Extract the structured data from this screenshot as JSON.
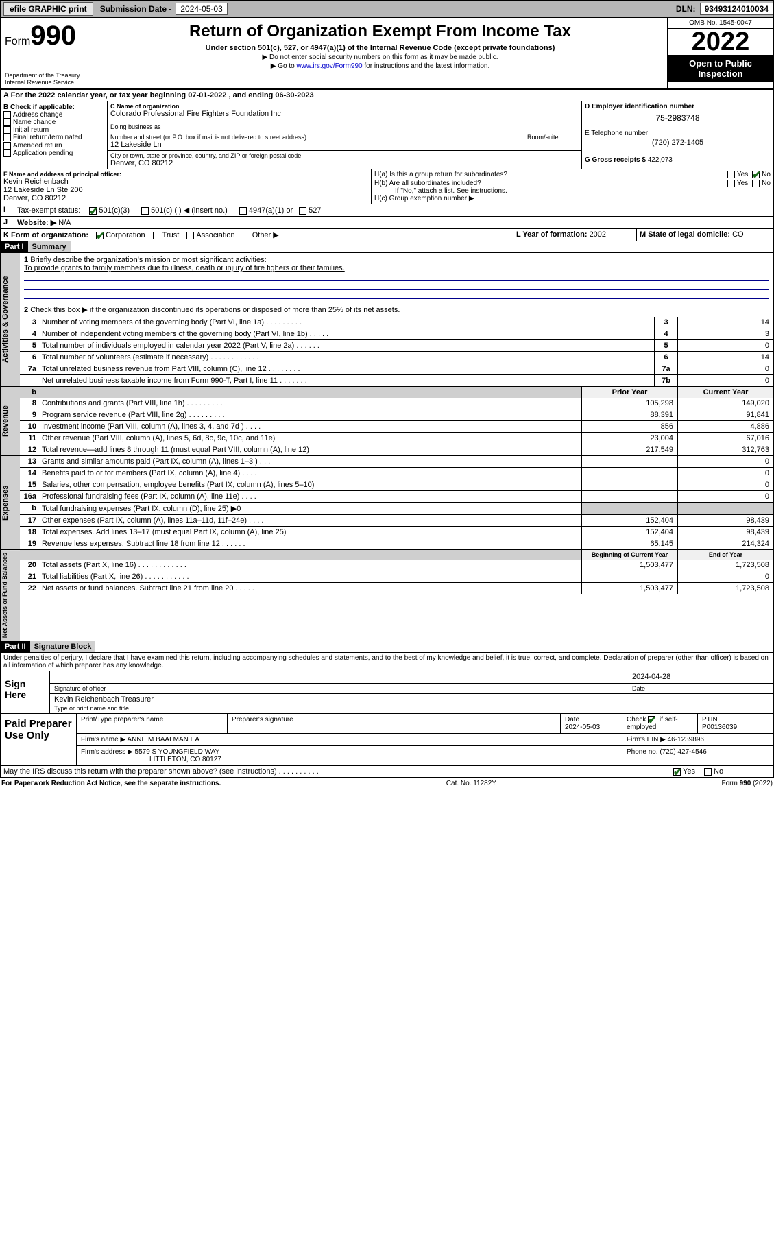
{
  "top": {
    "efile": "efile GRAPHIC print",
    "subdate_label": "Submission Date - ",
    "subdate": "2024-05-03",
    "dln_label": "DLN: ",
    "dln": "93493124010034"
  },
  "hdr": {
    "form_word": "Form",
    "form_num": "990",
    "dept": "Department of the Treasury",
    "irs": "Internal Revenue Service",
    "title": "Return of Organization Exempt From Income Tax",
    "sub": "Under section 501(c), 527, or 4947(a)(1) of the Internal Revenue Code (except private foundations)",
    "note1": "▶ Do not enter social security numbers on this form as it may be made public.",
    "note2_pre": "▶ Go to ",
    "note2_link": "www.irs.gov/Form990",
    "note2_post": " for instructions and the latest information.",
    "omb": "OMB No. 1545-0047",
    "year": "2022",
    "o2p": "Open to Public Inspection"
  },
  "A": {
    "line": "For the 2022 calendar year, or tax year beginning ",
    "begin": "07-01-2022",
    "mid": " , and ending ",
    "end": "06-30-2023"
  },
  "B": {
    "label": "B Check if applicable:",
    "items": [
      "Address change",
      "Name change",
      "Initial return",
      "Final return/terminated",
      "Amended return",
      "Application pending"
    ]
  },
  "C": {
    "name_label": "C Name of organization",
    "name": "Colorado Professional Fire Fighters Foundation Inc",
    "dba_label": "Doing business as",
    "dba": "",
    "street_label": "Number and street (or P.O. box if mail is not delivered to street address)",
    "room_label": "Room/suite",
    "street": "12 Lakeside Ln",
    "city_label": "City or town, state or province, country, and ZIP or foreign postal code",
    "city": "Denver, CO  80212"
  },
  "D": {
    "label": "D Employer identification number",
    "val": "75-2983748"
  },
  "E": {
    "label": "E Telephone number",
    "val": "(720) 272-1405"
  },
  "G": {
    "label": "G Gross receipts $ ",
    "val": "422,073"
  },
  "F": {
    "label": "F Name and address of principal officer:",
    "name": "Kevin Reichenbach",
    "street": "12 Lakeside Ln Ste 200",
    "city": "Denver, CO  80212"
  },
  "H": {
    "a": "H(a)  Is this a group return for subordinates?",
    "b": "H(b)  Are all subordinates included?",
    "bnote": "If \"No,\" attach a list. See instructions.",
    "c": "H(c)  Group exemption number ▶",
    "yes": "Yes",
    "no": "No"
  },
  "I": {
    "label": "Tax-exempt status:",
    "o1": "501(c)(3)",
    "o2": "501(c) (  ) ◀ (insert no.)",
    "o3": "4947(a)(1) or",
    "o4": "527"
  },
  "J": {
    "label": "Website: ▶",
    "val": "N/A"
  },
  "K": {
    "label": "K Form of organization:",
    "opts": [
      "Corporation",
      "Trust",
      "Association",
      "Other ▶"
    ]
  },
  "L": {
    "label": "L Year of formation: ",
    "val": "2002"
  },
  "M": {
    "label": "M State of legal domicile: ",
    "val": "CO"
  },
  "part1": {
    "bar": "Part I",
    "title": "Summary"
  },
  "p1": {
    "q1": "Briefly describe the organization's mission or most significant activities:",
    "a1": "To provide grants to family members due to illness, death or injury of fire fighers or their families.",
    "q2": "Check this box ▶      if the organization discontinued its operations or disposed of more than 25% of its net assets.",
    "lines": [
      {
        "n": "3",
        "d": "Number of voting members of the governing body (Part VI, line 1a)   .   .   .   .   .   .   .   .   .",
        "sn": "3",
        "v": "14"
      },
      {
        "n": "4",
        "d": "Number of independent voting members of the governing body (Part VI, line 1b)   .   .   .   .   .",
        "sn": "4",
        "v": "3"
      },
      {
        "n": "5",
        "d": "Total number of individuals employed in calendar year 2022 (Part V, line 2a)   .   .   .   .   .   .",
        "sn": "5",
        "v": "0"
      },
      {
        "n": "6",
        "d": "Total number of volunteers (estimate if necessary)   .   .   .   .   .   .   .   .   .   .   .   .",
        "sn": "6",
        "v": "14"
      },
      {
        "n": "7a",
        "d": "Total unrelated business revenue from Part VIII, column (C), line 12   .   .   .   .   .   .   .   .",
        "sn": "7a",
        "v": "0"
      },
      {
        "n": "",
        "d": "Net unrelated business taxable income from Form 990-T, Part I, line 11   .   .   .   .   .   .   .",
        "sn": "7b",
        "v": "0"
      }
    ]
  },
  "rev": {
    "h1": "Prior Year",
    "h2": "Current Year",
    "rows": [
      {
        "n": "8",
        "d": "Contributions and grants (Part VIII, line 1h)   .   .   .   .   .   .   .   .   .",
        "p": "105,298",
        "c": "149,020"
      },
      {
        "n": "9",
        "d": "Program service revenue (Part VIII, line 2g)   .   .   .   .   .   .   .   .   .",
        "p": "88,391",
        "c": "91,841"
      },
      {
        "n": "10",
        "d": "Investment income (Part VIII, column (A), lines 3, 4, and 7d )   .   .   .   .",
        "p": "856",
        "c": "4,886"
      },
      {
        "n": "11",
        "d": "Other revenue (Part VIII, column (A), lines 5, 6d, 8c, 9c, 10c, and 11e)",
        "p": "23,004",
        "c": "67,016"
      },
      {
        "n": "12",
        "d": "Total revenue—add lines 8 through 11 (must equal Part VIII, column (A), line 12)",
        "p": "217,549",
        "c": "312,763"
      }
    ]
  },
  "exp": {
    "rows": [
      {
        "n": "13",
        "d": "Grants and similar amounts paid (Part IX, column (A), lines 1–3 )   .   .   .",
        "p": "",
        "c": "0"
      },
      {
        "n": "14",
        "d": "Benefits paid to or for members (Part IX, column (A), line 4)   .   .   .   .",
        "p": "",
        "c": "0"
      },
      {
        "n": "15",
        "d": "Salaries, other compensation, employee benefits (Part IX, column (A), lines 5–10)",
        "p": "",
        "c": "0"
      },
      {
        "n": "16a",
        "d": "Professional fundraising fees (Part IX, column (A), line 11e)   .   .   .   .",
        "p": "",
        "c": "0"
      },
      {
        "n": "b",
        "d": "Total fundraising expenses (Part IX, column (D), line 25) ▶0",
        "p": "GREY",
        "c": "GREY"
      },
      {
        "n": "17",
        "d": "Other expenses (Part IX, column (A), lines 11a–11d, 11f–24e)   .   .   .   .",
        "p": "152,404",
        "c": "98,439"
      },
      {
        "n": "18",
        "d": "Total expenses. Add lines 13–17 (must equal Part IX, column (A), line 25)",
        "p": "152,404",
        "c": "98,439"
      },
      {
        "n": "19",
        "d": "Revenue less expenses. Subtract line 18 from line 12   .   .   .   .   .   .",
        "p": "65,145",
        "c": "214,324"
      }
    ]
  },
  "net": {
    "h1": "Beginning of Current Year",
    "h2": "End of Year",
    "rows": [
      {
        "n": "20",
        "d": "Total assets (Part X, line 16)   .   .   .   .   .   .   .   .   .   .   .   .",
        "p": "1,503,477",
        "c": "1,723,508"
      },
      {
        "n": "21",
        "d": "Total liabilities (Part X, line 26)   .   .   .   .   .   .   .   .   .   .   .",
        "p": "",
        "c": "0"
      },
      {
        "n": "22",
        "d": "Net assets or fund balances. Subtract line 21 from line 20   .   .   .   .   .",
        "p": "1,503,477",
        "c": "1,723,508"
      }
    ]
  },
  "sidetabs": {
    "ag": "Activities & Governance",
    "rev": "Revenue",
    "exp": "Expenses",
    "net": "Net Assets or Fund Balances"
  },
  "part2": {
    "bar": "Part II",
    "title": "Signature Block"
  },
  "sig": {
    "decl": "Under penalties of perjury, I declare that I have examined this return, including accompanying schedules and statements, and to the best of my knowledge and belief, it is true, correct, and complete. Declaration of preparer (other than officer) is based on all information of which preparer has any knowledge.",
    "here": "Sign Here",
    "sigoff": "Signature of officer",
    "date_label": "Date",
    "date": "2024-04-28",
    "name": "Kevin Reichenbach  Treasurer",
    "name_label": "Type or print name and title"
  },
  "prep": {
    "label": "Paid Preparer Use Only",
    "r1": {
      "c1": "Print/Type preparer's name",
      "c2": "Preparer's signature",
      "c3l": "Date",
      "c3": "2024-05-03",
      "c4l": "Check",
      "c4v": "if self-employed",
      "c5l": "PTIN",
      "c5": "P00136039"
    },
    "r2": {
      "l": "Firm's name    ▶",
      "v": "ANNE M BAALMAN EA",
      "r": "Firm's EIN ▶ 46-1239896"
    },
    "r3": {
      "l": "Firm's address ▶",
      "v1": "5579 S YOUNGFIELD WAY",
      "v2": "LITTLETON, CO  80127",
      "r": "Phone no. (720) 427-4546"
    }
  },
  "may": {
    "q": "May the IRS discuss this return with the preparer shown above? (see instructions)   .   .   .   .   .   .   .   .   .   .",
    "yes": "Yes",
    "no": "No"
  },
  "foot": {
    "l": "For Paperwork Reduction Act Notice, see the separate instructions.",
    "m": "Cat. No. 11282Y",
    "r": "Form 990 (2022)"
  }
}
